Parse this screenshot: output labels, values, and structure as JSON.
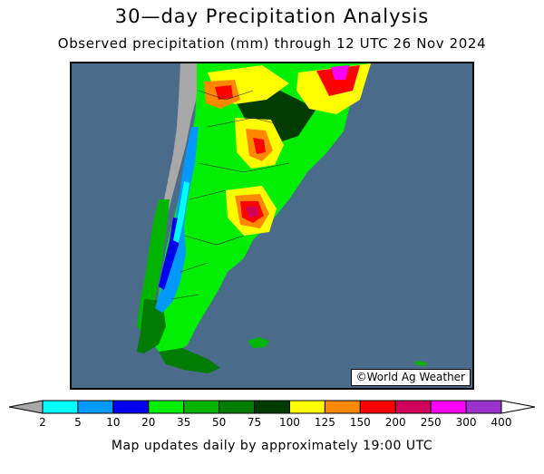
{
  "title": "30—day Precipitation Analysis",
  "subtitle": "Observed precipitation (mm) through 12 UTC 26 Nov 2024",
  "credit": "©World Ag Weather",
  "footer": "Map updates daily by approximately 19:00 UTC",
  "colors": {
    "ocean": "#4a6b8a",
    "dry_land": "#a8a8a8",
    "bins": [
      "#00ffff",
      "#0099ff",
      "#0000ee",
      "#00ee00",
      "#00b400",
      "#007c00",
      "#003c00",
      "#ffff00",
      "#ff8800",
      "#ff0000",
      "#d0005a",
      "#ff00ff",
      "#9933cc"
    ]
  },
  "colorbar": {
    "ticks": [
      "2",
      "5",
      "10",
      "20",
      "35",
      "50",
      "75",
      "100",
      "125",
      "150",
      "200",
      "250",
      "300",
      "400"
    ]
  }
}
